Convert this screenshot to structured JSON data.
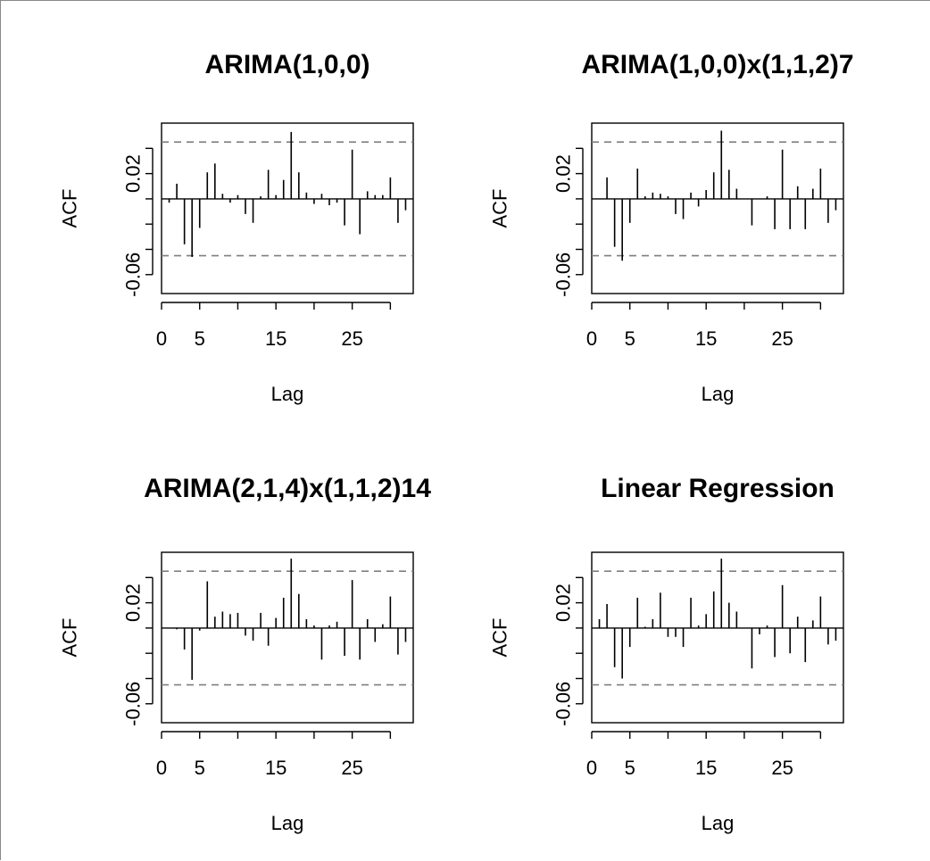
{
  "chart_data": [
    {
      "type": "bar",
      "title": "ARIMA(1,0,0)",
      "xlabel": "Lag",
      "ylabel": "ACF",
      "xlim": [
        0,
        33
      ],
      "ylim": [
        -0.075,
        0.06
      ],
      "xticks": [
        0,
        5,
        15,
        25
      ],
      "xtick_labels": [
        "0",
        "5",
        "15",
        "25"
      ],
      "yticks": [
        -0.06,
        0.02
      ],
      "ytick_labels": [
        "-0.06",
        "0.02"
      ],
      "ci": 0.045,
      "lags": [
        1,
        2,
        3,
        4,
        5,
        6,
        7,
        8,
        9,
        10,
        11,
        12,
        13,
        14,
        15,
        16,
        17,
        18,
        19,
        20,
        21,
        22,
        23,
        24,
        25,
        26,
        27,
        28,
        29,
        30,
        31,
        32
      ],
      "values": [
        -0.003,
        0.012,
        -0.036,
        -0.046,
        -0.023,
        0.021,
        0.028,
        0.004,
        -0.003,
        0.003,
        -0.012,
        -0.019,
        0.002,
        0.023,
        0.003,
        0.015,
        0.053,
        0.021,
        0.005,
        -0.004,
        0.004,
        -0.005,
        -0.003,
        -0.021,
        0.039,
        -0.028,
        0.006,
        0.003,
        0.003,
        0.017,
        -0.019,
        -0.009
      ]
    },
    {
      "type": "bar",
      "title": "ARIMA(1,0,0)x(1,1,2)7",
      "xlabel": "Lag",
      "ylabel": "ACF",
      "xlim": [
        0,
        33
      ],
      "ylim": [
        -0.075,
        0.06
      ],
      "xticks": [
        0,
        5,
        15,
        25
      ],
      "xtick_labels": [
        "0",
        "5",
        "15",
        "25"
      ],
      "yticks": [
        -0.06,
        0.02
      ],
      "ytick_labels": [
        "-0.06",
        "0.02"
      ],
      "ci": 0.045,
      "lags": [
        1,
        2,
        3,
        4,
        5,
        6,
        7,
        8,
        9,
        10,
        11,
        12,
        13,
        14,
        15,
        16,
        17,
        18,
        19,
        20,
        21,
        22,
        23,
        24,
        25,
        26,
        27,
        28,
        29,
        30,
        31,
        32
      ],
      "values": [
        0.0,
        0.017,
        -0.038,
        -0.049,
        -0.019,
        0.024,
        0.002,
        0.005,
        0.004,
        0.002,
        -0.012,
        -0.016,
        0.005,
        -0.006,
        0.007,
        0.021,
        0.054,
        0.023,
        0.008,
        0.0,
        -0.021,
        0.0,
        0.002,
        -0.024,
        0.039,
        -0.024,
        0.01,
        -0.024,
        0.008,
        0.024,
        -0.019,
        -0.009
      ]
    },
    {
      "type": "bar",
      "title": "ARIMA(2,1,4)x(1,1,2)14",
      "xlabel": "Lag",
      "ylabel": "ACF",
      "xlim": [
        0,
        33
      ],
      "ylim": [
        -0.075,
        0.06
      ],
      "xticks": [
        0,
        5,
        15,
        25
      ],
      "xtick_labels": [
        "0",
        "5",
        "15",
        "25"
      ],
      "yticks": [
        -0.06,
        0.02
      ],
      "ytick_labels": [
        "-0.06",
        "0.02"
      ],
      "ci": 0.045,
      "lags": [
        1,
        2,
        3,
        4,
        5,
        6,
        7,
        8,
        9,
        10,
        11,
        12,
        13,
        14,
        15,
        16,
        17,
        18,
        19,
        20,
        21,
        22,
        23,
        24,
        25,
        26,
        27,
        28,
        29,
        30,
        31,
        32
      ],
      "values": [
        0.0,
        -0.001,
        -0.017,
        -0.041,
        -0.002,
        0.037,
        0.009,
        0.013,
        0.011,
        0.012,
        -0.006,
        -0.01,
        0.012,
        -0.014,
        0.008,
        0.024,
        0.055,
        0.027,
        0.007,
        0.002,
        -0.025,
        0.002,
        0.005,
        -0.022,
        0.038,
        -0.025,
        0.007,
        -0.011,
        0.003,
        0.025,
        -0.021,
        -0.011
      ]
    },
    {
      "type": "bar",
      "title": "Linear Regression",
      "xlabel": "Lag",
      "ylabel": "ACF",
      "xlim": [
        0,
        33
      ],
      "ylim": [
        -0.075,
        0.06
      ],
      "xticks": [
        0,
        5,
        15,
        25
      ],
      "xtick_labels": [
        "0",
        "5",
        "15",
        "25"
      ],
      "yticks": [
        -0.06,
        0.02
      ],
      "ytick_labels": [
        "-0.06",
        "0.02"
      ],
      "ci": 0.045,
      "lags": [
        1,
        2,
        3,
        4,
        5,
        6,
        7,
        8,
        9,
        10,
        11,
        12,
        13,
        14,
        15,
        16,
        17,
        18,
        19,
        20,
        21,
        22,
        23,
        24,
        25,
        26,
        27,
        28,
        29,
        30,
        31,
        32
      ],
      "values": [
        0.007,
        0.019,
        -0.031,
        -0.04,
        -0.015,
        0.024,
        0.001,
        0.007,
        0.028,
        -0.007,
        -0.007,
        -0.015,
        0.024,
        0.002,
        0.011,
        0.029,
        0.055,
        0.02,
        0.013,
        0.0,
        -0.032,
        -0.005,
        0.002,
        -0.023,
        0.034,
        -0.02,
        0.009,
        -0.027,
        0.006,
        0.025,
        -0.013,
        -0.01
      ]
    }
  ]
}
